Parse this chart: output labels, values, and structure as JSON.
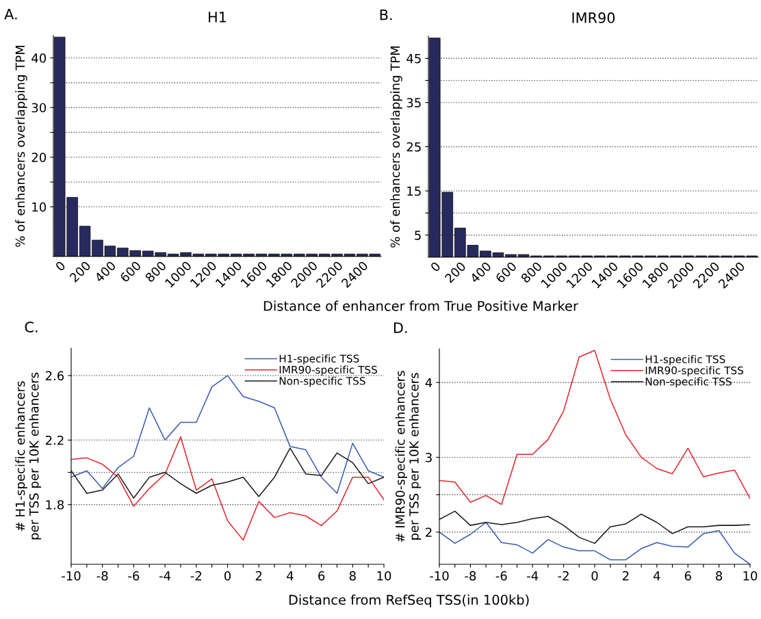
{
  "chart_data": [
    {
      "type": "bar",
      "title": "H1",
      "annotations": [
        "A."
      ],
      "xlabel": "Distance of enhancer from True Positive Marker",
      "ylabel": "% of enhancers overlapping TPM",
      "categories": [
        "0",
        null,
        "200",
        null,
        "400",
        null,
        "600",
        null,
        "800",
        null,
        "1000",
        null,
        "1200",
        null,
        "1400",
        null,
        "1600",
        null,
        "1800",
        null,
        "2000",
        null,
        "2200",
        null,
        "2400",
        null
      ],
      "values": [
        44.2,
        11.9,
        6.1,
        3.3,
        2.1,
        1.7,
        1.2,
        1.1,
        0.8,
        0.5,
        0.8,
        0.5,
        0.5,
        0.5,
        0.5,
        0.5,
        0.5,
        0.5,
        0.5,
        0.5,
        0.5,
        0.5,
        0.5,
        0.5,
        0.5,
        0.5
      ],
      "color": "#262a5e",
      "ylim": [
        0,
        44.5
      ],
      "yticks": [
        10,
        {
          "value": 15,
          "label": null
        },
        20,
        {
          "value": 25,
          "label": null
        },
        30,
        {
          "value": 35,
          "label": null
        },
        40
      ],
      "grid": "y"
    },
    {
      "type": "bar",
      "title": "IMR90",
      "annotations": [
        "B."
      ],
      "ylabel": "% of enhancers overlapping TPM",
      "categories": [
        "0",
        null,
        "200",
        null,
        "400",
        null,
        "600",
        null,
        "800",
        null,
        "1000",
        null,
        "1200",
        null,
        "1400",
        null,
        "1600",
        null,
        "1800",
        null,
        "2000",
        null,
        "2200",
        null,
        "2400",
        null
      ],
      "values": [
        49.6,
        14.7,
        6.6,
        2.7,
        1.4,
        1.0,
        0.6,
        0.6,
        0.3,
        0.3,
        0.3,
        0.3,
        0.3,
        0.3,
        0.3,
        0.3,
        0.3,
        0.3,
        0.3,
        0.3,
        0.3,
        0.3,
        0.3,
        0.3,
        0.3,
        0.3
      ],
      "color": "#262a5e",
      "ylim": [
        0,
        50
      ],
      "yticks": [
        5,
        {
          "value": 10,
          "label": null
        },
        15,
        25,
        35,
        {
          "value": 40,
          "label": null
        },
        45
      ],
      "grid": "y"
    },
    {
      "type": "line",
      "annotations": [
        "C."
      ],
      "xlabel": "Distance from RefSeq TSS(in 100kb)",
      "ylabel": "# H1-specific enhancers\nper TSS per 10K enhancers",
      "x": [
        -10,
        -9,
        -8,
        -7,
        -6,
        -5,
        -4,
        -3,
        -2,
        -1,
        0,
        1,
        2,
        3,
        4,
        5,
        6,
        7,
        8,
        9,
        10
      ],
      "series": [
        {
          "name": "H1-specific TSS",
          "color": "#3a5bab",
          "values": [
            1.97,
            2.01,
            1.9,
            2.03,
            2.1,
            2.4,
            2.2,
            2.31,
            2.31,
            2.53,
            2.6,
            2.47,
            2.44,
            2.4,
            2.16,
            2.14,
            1.97,
            1.87,
            2.18,
            2.01,
            1.97
          ]
        },
        {
          "name": "IMR90-specific TSS",
          "color": "#e3262b",
          "values": [
            2.08,
            2.09,
            2.05,
            1.97,
            1.79,
            1.9,
            1.99,
            2.22,
            1.89,
            1.96,
            1.7,
            1.58,
            1.82,
            1.72,
            1.75,
            1.73,
            1.67,
            1.76,
            1.97,
            1.97,
            1.83
          ]
        },
        {
          "name": "Non-specific TSS",
          "color": "#1a1a1a",
          "values": [
            2.01,
            1.87,
            1.89,
            1.99,
            1.84,
            1.97,
            2.0,
            1.93,
            1.87,
            1.92,
            1.94,
            1.97,
            1.85,
            1.97,
            2.15,
            1.99,
            1.98,
            2.12,
            2.06,
            1.93,
            1.97
          ]
        }
      ],
      "xlim": [
        -10,
        10
      ],
      "xticks": [
        -10,
        {
          "value": -9,
          "label": null
        },
        -8,
        {
          "value": -7,
          "label": null
        },
        -6,
        {
          "value": -5,
          "label": null
        },
        -4,
        {
          "value": -3,
          "label": null
        },
        -2,
        {
          "value": -1,
          "label": null
        },
        0,
        {
          "value": 1,
          "label": null
        },
        2,
        {
          "value": 3,
          "label": null
        },
        4,
        {
          "value": 5,
          "label": null
        },
        6,
        {
          "value": 7,
          "label": null
        },
        8,
        {
          "value": 9,
          "label": null
        },
        10
      ],
      "ylim": [
        1.43,
        2.77
      ],
      "yticks": [
        1.8,
        {
          "value": 2.0,
          "label": null
        },
        2.2,
        2.6
      ],
      "grid": "y",
      "legend": "top right"
    },
    {
      "type": "line",
      "annotations": [
        "D."
      ],
      "ylabel": "# IMR90-specific enhancers\nper TSS per 10K enhancers",
      "x": [
        -10,
        -9,
        -8,
        -7,
        -6,
        -5,
        -4,
        -3,
        -2,
        -1,
        0,
        1,
        2,
        3,
        4,
        5,
        6,
        7,
        8,
        9,
        10
      ],
      "series": [
        {
          "name": "H1-specific TSS",
          "color": "#3a5bab",
          "values": [
            2.0,
            1.85,
            1.97,
            2.13,
            1.86,
            1.83,
            1.72,
            1.9,
            1.8,
            1.75,
            1.75,
            1.63,
            1.63,
            1.78,
            1.86,
            1.81,
            1.8,
            1.98,
            2.02,
            1.72,
            1.57
          ]
        },
        {
          "name": "IMR90-specific TSS",
          "color": "#e3262b",
          "values": [
            2.69,
            2.67,
            2.4,
            2.49,
            2.37,
            3.04,
            3.04,
            3.24,
            3.62,
            4.34,
            4.43,
            3.78,
            3.3,
            3.0,
            2.85,
            2.78,
            3.12,
            2.74,
            2.79,
            2.83,
            2.45
          ]
        },
        {
          "name": "Non-specific TSS",
          "color": "#1a1a1a",
          "values": [
            2.17,
            2.28,
            2.09,
            2.13,
            2.1,
            2.13,
            2.18,
            2.21,
            2.09,
            1.93,
            1.85,
            2.07,
            2.11,
            2.24,
            2.13,
            1.98,
            2.07,
            2.07,
            2.09,
            2.09,
            2.1
          ]
        }
      ],
      "xlim": [
        -10,
        10
      ],
      "xticks": [
        -10,
        {
          "value": -9,
          "label": null
        },
        -8,
        {
          "value": -7,
          "label": null
        },
        -6,
        {
          "value": -5,
          "label": null
        },
        -4,
        {
          "value": -3,
          "label": null
        },
        -2,
        {
          "value": -1,
          "label": null
        },
        0,
        {
          "value": 1,
          "label": null
        },
        2,
        {
          "value": 3,
          "label": null
        },
        4,
        {
          "value": 5,
          "label": null
        },
        6,
        {
          "value": 7,
          "label": null
        },
        8,
        {
          "value": 9,
          "label": null
        },
        10
      ],
      "ylim": [
        1.57,
        4.45
      ],
      "yticks": [
        2,
        {
          "value": 2.5,
          "label": null
        },
        3,
        4
      ],
      "grid": "y",
      "legend": "top right"
    }
  ]
}
